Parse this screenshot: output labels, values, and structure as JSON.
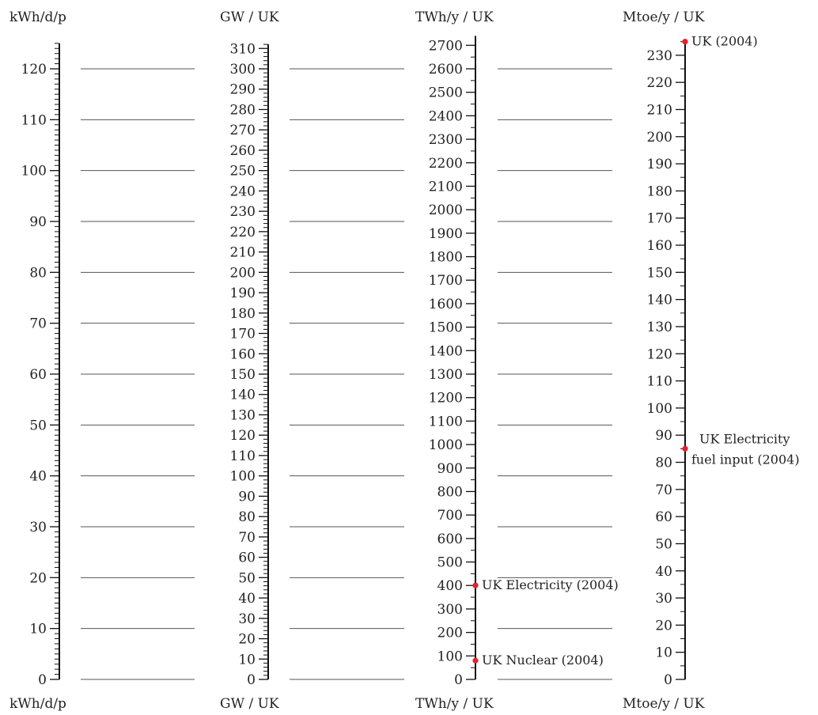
{
  "chart_data": {
    "type": "scatter",
    "title": "",
    "axes": [
      {
        "key": "kwh",
        "unit_label": "kWh/d/p",
        "min": 0,
        "max": 125,
        "major_step": 10,
        "minor_step": 1,
        "label_step": 10
      },
      {
        "key": "gw",
        "unit_label": "GW / UK",
        "min": 0,
        "max": 312,
        "major_step": 10,
        "minor_step": 2,
        "label_step": 10
      },
      {
        "key": "twh",
        "unit_label": "TWh/y / UK",
        "min": 0,
        "max": 2740,
        "major_step": 100,
        "minor_step": 50,
        "label_step": 100
      },
      {
        "key": "mtoe",
        "unit_label": "Mtoe/y / UK",
        "min": 0,
        "max": 236,
        "major_step": 10,
        "minor_step": 5,
        "label_step": 10
      }
    ],
    "gridlines": [
      0,
      10,
      20,
      30,
      40,
      50,
      60,
      70,
      80,
      90,
      100,
      110,
      120
    ],
    "gridline_axis": "kwh",
    "points": [
      {
        "axis": "twh",
        "value": 400,
        "label": [
          "UK Electricity (2004)"
        ]
      },
      {
        "axis": "twh",
        "value": 80,
        "label": [
          "UK Nuclear (2004)"
        ]
      },
      {
        "axis": "mtoe",
        "value": 235,
        "label": [
          "UK (2004)"
        ]
      },
      {
        "axis": "mtoe",
        "value": 85,
        "label": [
          "UK Electricity",
          "fuel input (2004)"
        ]
      }
    ],
    "point_color": "#e8202a",
    "legend": "none",
    "grid": true
  }
}
